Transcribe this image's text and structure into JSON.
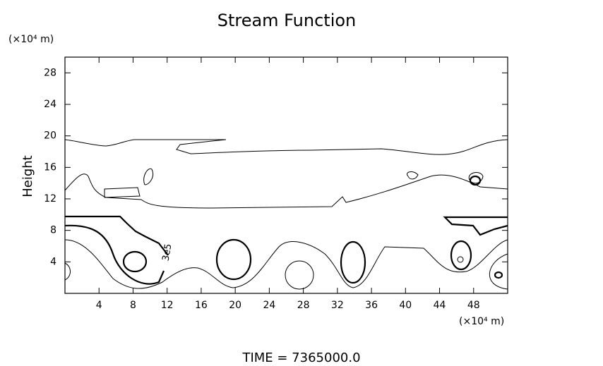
{
  "chart_data": {
    "type": "contour",
    "title": "Stream Function",
    "y_unit": "(×10⁴ m)",
    "x_unit": "(×10⁴ m)",
    "ylabel": "Height",
    "footer": "TIME = 7365000.0",
    "xlim": [
      0,
      52
    ],
    "ylim": [
      0,
      30
    ],
    "xticks": [
      4,
      8,
      12,
      16,
      20,
      24,
      28,
      32,
      36,
      40,
      44,
      48
    ],
    "yticks": [
      4,
      8,
      12,
      16,
      20,
      24,
      28
    ],
    "contour_labels": [
      {
        "value": 300000,
        "label": "3e5"
      }
    ]
  }
}
